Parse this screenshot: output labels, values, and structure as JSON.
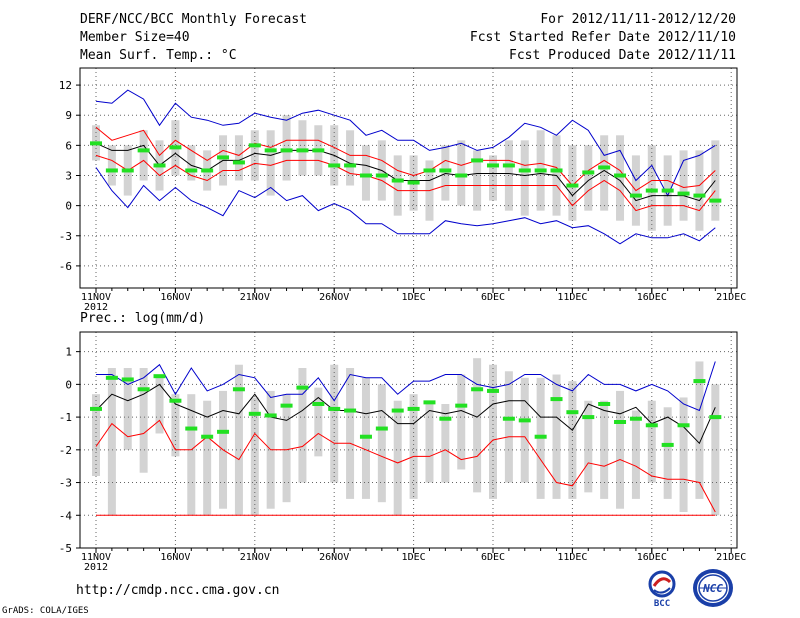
{
  "header": {
    "title": "DERF/NCC/BCC Monthly Forecast",
    "member_size": "Member Size=40",
    "variable": "Mean Surf. Temp.: °C",
    "period": "For 2012/11/11-2012/12/20",
    "start_date": "Fcst Started Refer Date 2012/11/10",
    "produced_date": "Fcst Produced Date 2012/11/11"
  },
  "footer": {
    "url": "http://cmdp.ncc.cma.gov.cn",
    "grads": "GrADS: COLA/IGES",
    "logo_bcc": "BCC",
    "logo_ncc": "NCC"
  },
  "colors": {
    "box": "#d3d3d3",
    "green": "#22e022",
    "red": "#ff0000",
    "blue": "#0000cc",
    "mean": "#000000",
    "grid": "#666666"
  },
  "chart_data": [
    {
      "type": "line",
      "title": "Mean Surf. Temp.: °C",
      "x_tick_labels": [
        "11NOV",
        "16NOV",
        "21NOV",
        "26NOV",
        "1DEC",
        "6DEC",
        "11DEC",
        "16DEC",
        "21DEC"
      ],
      "x_year_label": "2012",
      "y_ticks": [
        -6,
        -3,
        0,
        3,
        6,
        9,
        12
      ],
      "ylim": [
        -8.2,
        13.7
      ],
      "days": 40,
      "series": [
        {
          "name": "ensemble max",
          "color": "blue",
          "values": [
            10.4,
            10.2,
            11.5,
            10.6,
            8.0,
            10.2,
            8.8,
            8.5,
            8.0,
            8.2,
            9.2,
            8.8,
            8.5,
            9.2,
            9.5,
            9.0,
            8.5,
            7.0,
            7.5,
            6.5,
            6.5,
            5.5,
            5.8,
            6.2,
            5.5,
            5.8,
            6.8,
            8.2,
            7.8,
            7.0,
            8.5,
            7.5,
            5.0,
            5.5,
            2.5,
            4.0,
            1.0,
            4.5,
            5.0,
            6.0
          ]
        },
        {
          "name": "upper red",
          "color": "red",
          "values": [
            7.8,
            6.5,
            7.0,
            7.5,
            5.0,
            6.5,
            5.5,
            4.5,
            5.5,
            5.0,
            6.2,
            5.8,
            6.5,
            6.5,
            6.5,
            5.8,
            5.0,
            5.0,
            4.5,
            3.5,
            3.0,
            3.5,
            4.5,
            4.0,
            4.5,
            4.5,
            4.5,
            4.0,
            4.2,
            3.8,
            2.0,
            3.5,
            4.5,
            3.5,
            1.5,
            2.5,
            2.5,
            1.8,
            2.0,
            3.5
          ]
        },
        {
          "name": "ensemble mean",
          "color": "mean",
          "values": [
            6.2,
            5.5,
            5.5,
            6.0,
            4.0,
            5.2,
            4.0,
            3.5,
            4.5,
            4.5,
            5.2,
            5.0,
            5.5,
            5.5,
            5.5,
            5.0,
            4.2,
            4.0,
            3.5,
            2.5,
            2.5,
            2.5,
            3.2,
            3.0,
            3.2,
            3.2,
            3.2,
            3.0,
            3.2,
            3.0,
            1.0,
            2.5,
            3.5,
            2.5,
            0.5,
            1.0,
            1.0,
            1.0,
            0.5,
            2.5
          ]
        },
        {
          "name": "lower red",
          "color": "red",
          "values": [
            5.0,
            4.5,
            3.5,
            4.5,
            3.0,
            4.0,
            3.0,
            2.5,
            3.5,
            3.5,
            4.2,
            4.0,
            4.5,
            4.5,
            4.5,
            4.0,
            3.2,
            3.0,
            2.5,
            1.5,
            1.5,
            1.5,
            2.0,
            2.0,
            2.0,
            2.0,
            2.0,
            2.0,
            2.0,
            2.0,
            0.0,
            1.5,
            2.5,
            1.5,
            -0.5,
            0.0,
            0.0,
            0.0,
            -0.5,
            1.5
          ]
        },
        {
          "name": "ensemble min",
          "color": "blue",
          "values": [
            3.8,
            1.5,
            -0.2,
            2.0,
            0.5,
            1.8,
            0.5,
            -0.2,
            -1.0,
            1.5,
            0.8,
            1.8,
            0.5,
            1.0,
            -0.5,
            0.2,
            -0.5,
            -1.8,
            -1.8,
            -2.8,
            -2.8,
            -2.8,
            -1.5,
            -1.8,
            -2.0,
            -1.8,
            -1.5,
            -1.2,
            -1.8,
            -1.5,
            -2.2,
            -2.0,
            -2.8,
            -3.8,
            -2.8,
            -3.2,
            -3.2,
            -2.8,
            -3.5,
            -2.2
          ]
        }
      ],
      "boxes": {
        "low": [
          4.5,
          2.0,
          1.0,
          2.5,
          1.5,
          3.0,
          2.5,
          1.5,
          2.0,
          2.5,
          2.5,
          1.0,
          2.5,
          3.0,
          3.0,
          2.0,
          2.0,
          0.5,
          0.5,
          -1.0,
          -0.5,
          -1.5,
          0.5,
          0.0,
          -0.5,
          0.5,
          -0.5,
          -1.0,
          -0.5,
          -1.0,
          -1.5,
          -0.5,
          -0.5,
          -1.5,
          -2.0,
          -2.5,
          -2.0,
          -1.5,
          -2.5,
          -1.5
        ],
        "high": [
          8.0,
          6.0,
          6.0,
          7.5,
          6.5,
          8.5,
          6.0,
          5.5,
          7.0,
          7.0,
          7.5,
          7.5,
          9.0,
          8.5,
          8.0,
          8.0,
          7.5,
          6.0,
          6.5,
          5.0,
          5.0,
          4.5,
          6.0,
          6.5,
          5.5,
          5.0,
          6.5,
          6.5,
          7.5,
          7.0,
          6.0,
          6.0,
          7.0,
          7.0,
          5.0,
          6.0,
          5.0,
          5.5,
          5.5,
          6.5
        ],
        "green": [
          6.2,
          3.5,
          3.5,
          5.5,
          4.0,
          5.8,
          3.5,
          3.5,
          4.8,
          4.3,
          6.0,
          5.5,
          5.5,
          5.5,
          5.5,
          4.0,
          4.0,
          3.0,
          3.0,
          2.5,
          2.3,
          3.5,
          3.5,
          3.0,
          4.5,
          4.0,
          4.0,
          3.5,
          3.5,
          3.5,
          2.0,
          3.3,
          3.8,
          3.0,
          1.0,
          1.5,
          1.5,
          1.2,
          1.0,
          0.5
        ]
      }
    },
    {
      "type": "line",
      "title": "Prec.: log(mm/d)",
      "x_tick_labels": [
        "11NOV",
        "16NOV",
        "21NOV",
        "26NOV",
        "1DEC",
        "6DEC",
        "11DEC",
        "16DEC",
        "21DEC"
      ],
      "x_year_label": "2012",
      "y_ticks": [
        -5,
        -4,
        -3,
        -2,
        -1,
        0,
        1
      ],
      "ylim": [
        -5,
        1.6
      ],
      "days": 40,
      "series": [
        {
          "name": "ensemble max",
          "color": "blue",
          "values": [
            0.3,
            0.3,
            0.0,
            0.2,
            0.6,
            -0.3,
            0.5,
            -0.2,
            0.0,
            0.3,
            0.2,
            -0.4,
            -0.3,
            -0.3,
            0.2,
            -0.5,
            0.3,
            0.2,
            0.2,
            -0.3,
            0.1,
            0.1,
            0.3,
            0.3,
            0.0,
            -0.1,
            0.0,
            0.3,
            0.3,
            0.0,
            -0.2,
            0.3,
            0.0,
            0.0,
            -0.2,
            0.0,
            -0.2,
            -0.6,
            -0.8,
            0.7
          ]
        },
        {
          "name": "ensemble mean",
          "color": "mean",
          "values": [
            -0.8,
            -0.3,
            -0.5,
            -0.3,
            0.0,
            -0.6,
            -0.8,
            -1.0,
            -0.8,
            -0.9,
            -0.3,
            -1.0,
            -1.1,
            -0.8,
            -0.4,
            -0.8,
            -0.8,
            -0.9,
            -0.8,
            -1.2,
            -1.2,
            -0.8,
            -0.9,
            -0.8,
            -1.0,
            -0.6,
            -0.5,
            -0.5,
            -1.0,
            -1.0,
            -1.4,
            -0.6,
            -0.8,
            -0.9,
            -0.7,
            -1.2,
            -1.0,
            -1.3,
            -1.8,
            -0.7
          ]
        },
        {
          "name": "lower red",
          "color": "red",
          "values": [
            -1.9,
            -1.2,
            -1.6,
            -1.5,
            -1.1,
            -2.0,
            -2.0,
            -1.6,
            -2.0,
            -2.3,
            -1.5,
            -2.0,
            -2.0,
            -1.9,
            -1.5,
            -1.8,
            -1.8,
            -2.0,
            -2.2,
            -2.4,
            -2.2,
            -2.2,
            -2.0,
            -2.3,
            -2.2,
            -1.7,
            -1.6,
            -1.6,
            -2.3,
            -3.0,
            -3.1,
            -2.4,
            -2.5,
            -2.3,
            -2.5,
            -2.8,
            -2.9,
            -2.9,
            -3.0,
            -3.9
          ]
        },
        {
          "name": "floor",
          "color": "red",
          "values": [
            -4,
            -4,
            -4,
            -4,
            -4,
            -4,
            -4,
            -4,
            -4,
            -4,
            -4,
            -4,
            -4,
            -4,
            -4,
            -4,
            -4,
            -4,
            -4,
            -4,
            -4,
            -4,
            -4,
            -4,
            -4,
            -4,
            -4,
            -4,
            -4,
            -4,
            -4,
            -4,
            -4,
            -4,
            -4,
            -4,
            -4,
            -4,
            -4,
            -4
          ]
        }
      ],
      "boxes": {
        "low": [
          -2.8,
          -4.0,
          -2.0,
          -2.7,
          -1.5,
          -2.2,
          -4.0,
          -4.0,
          -3.8,
          -4.0,
          -4.0,
          -3.8,
          -3.6,
          -3.0,
          -2.2,
          -3.0,
          -3.5,
          -3.5,
          -3.6,
          -4.0,
          -3.5,
          -3.0,
          -3.0,
          -2.6,
          -3.3,
          -3.5,
          -3.0,
          -3.0,
          -3.5,
          -3.5,
          -3.5,
          -3.3,
          -3.5,
          -3.8,
          -3.5,
          -3.0,
          -3.5,
          -3.9,
          -3.5,
          -4.0
        ],
        "high": [
          -0.3,
          0.5,
          0.5,
          0.5,
          0.2,
          -0.3,
          -0.3,
          -0.5,
          -0.2,
          0.6,
          -0.4,
          -0.2,
          -0.3,
          0.5,
          -0.1,
          0.6,
          0.5,
          0.2,
          0.0,
          -0.5,
          -0.3,
          -0.5,
          -0.6,
          0.3,
          0.8,
          0.6,
          0.4,
          0.2,
          0.2,
          0.3,
          0.1,
          -0.5,
          -0.5,
          -0.2,
          -0.8,
          -0.5,
          -0.7,
          -0.4,
          0.7,
          0.0
        ],
        "green": [
          -0.75,
          0.2,
          0.15,
          -0.15,
          0.25,
          -0.5,
          -1.35,
          -1.6,
          -1.45,
          -0.15,
          -0.9,
          -0.95,
          -0.65,
          -0.1,
          -0.6,
          -0.75,
          -0.8,
          -1.6,
          -1.35,
          -0.8,
          -0.75,
          -0.55,
          -1.05,
          -0.65,
          -0.15,
          -0.2,
          -1.05,
          -1.1,
          -1.6,
          -0.45,
          -0.85,
          -1.0,
          -0.6,
          -1.15,
          -1.05,
          -1.25,
          -1.85,
          -1.25,
          0.1,
          -1.0
        ]
      }
    }
  ]
}
